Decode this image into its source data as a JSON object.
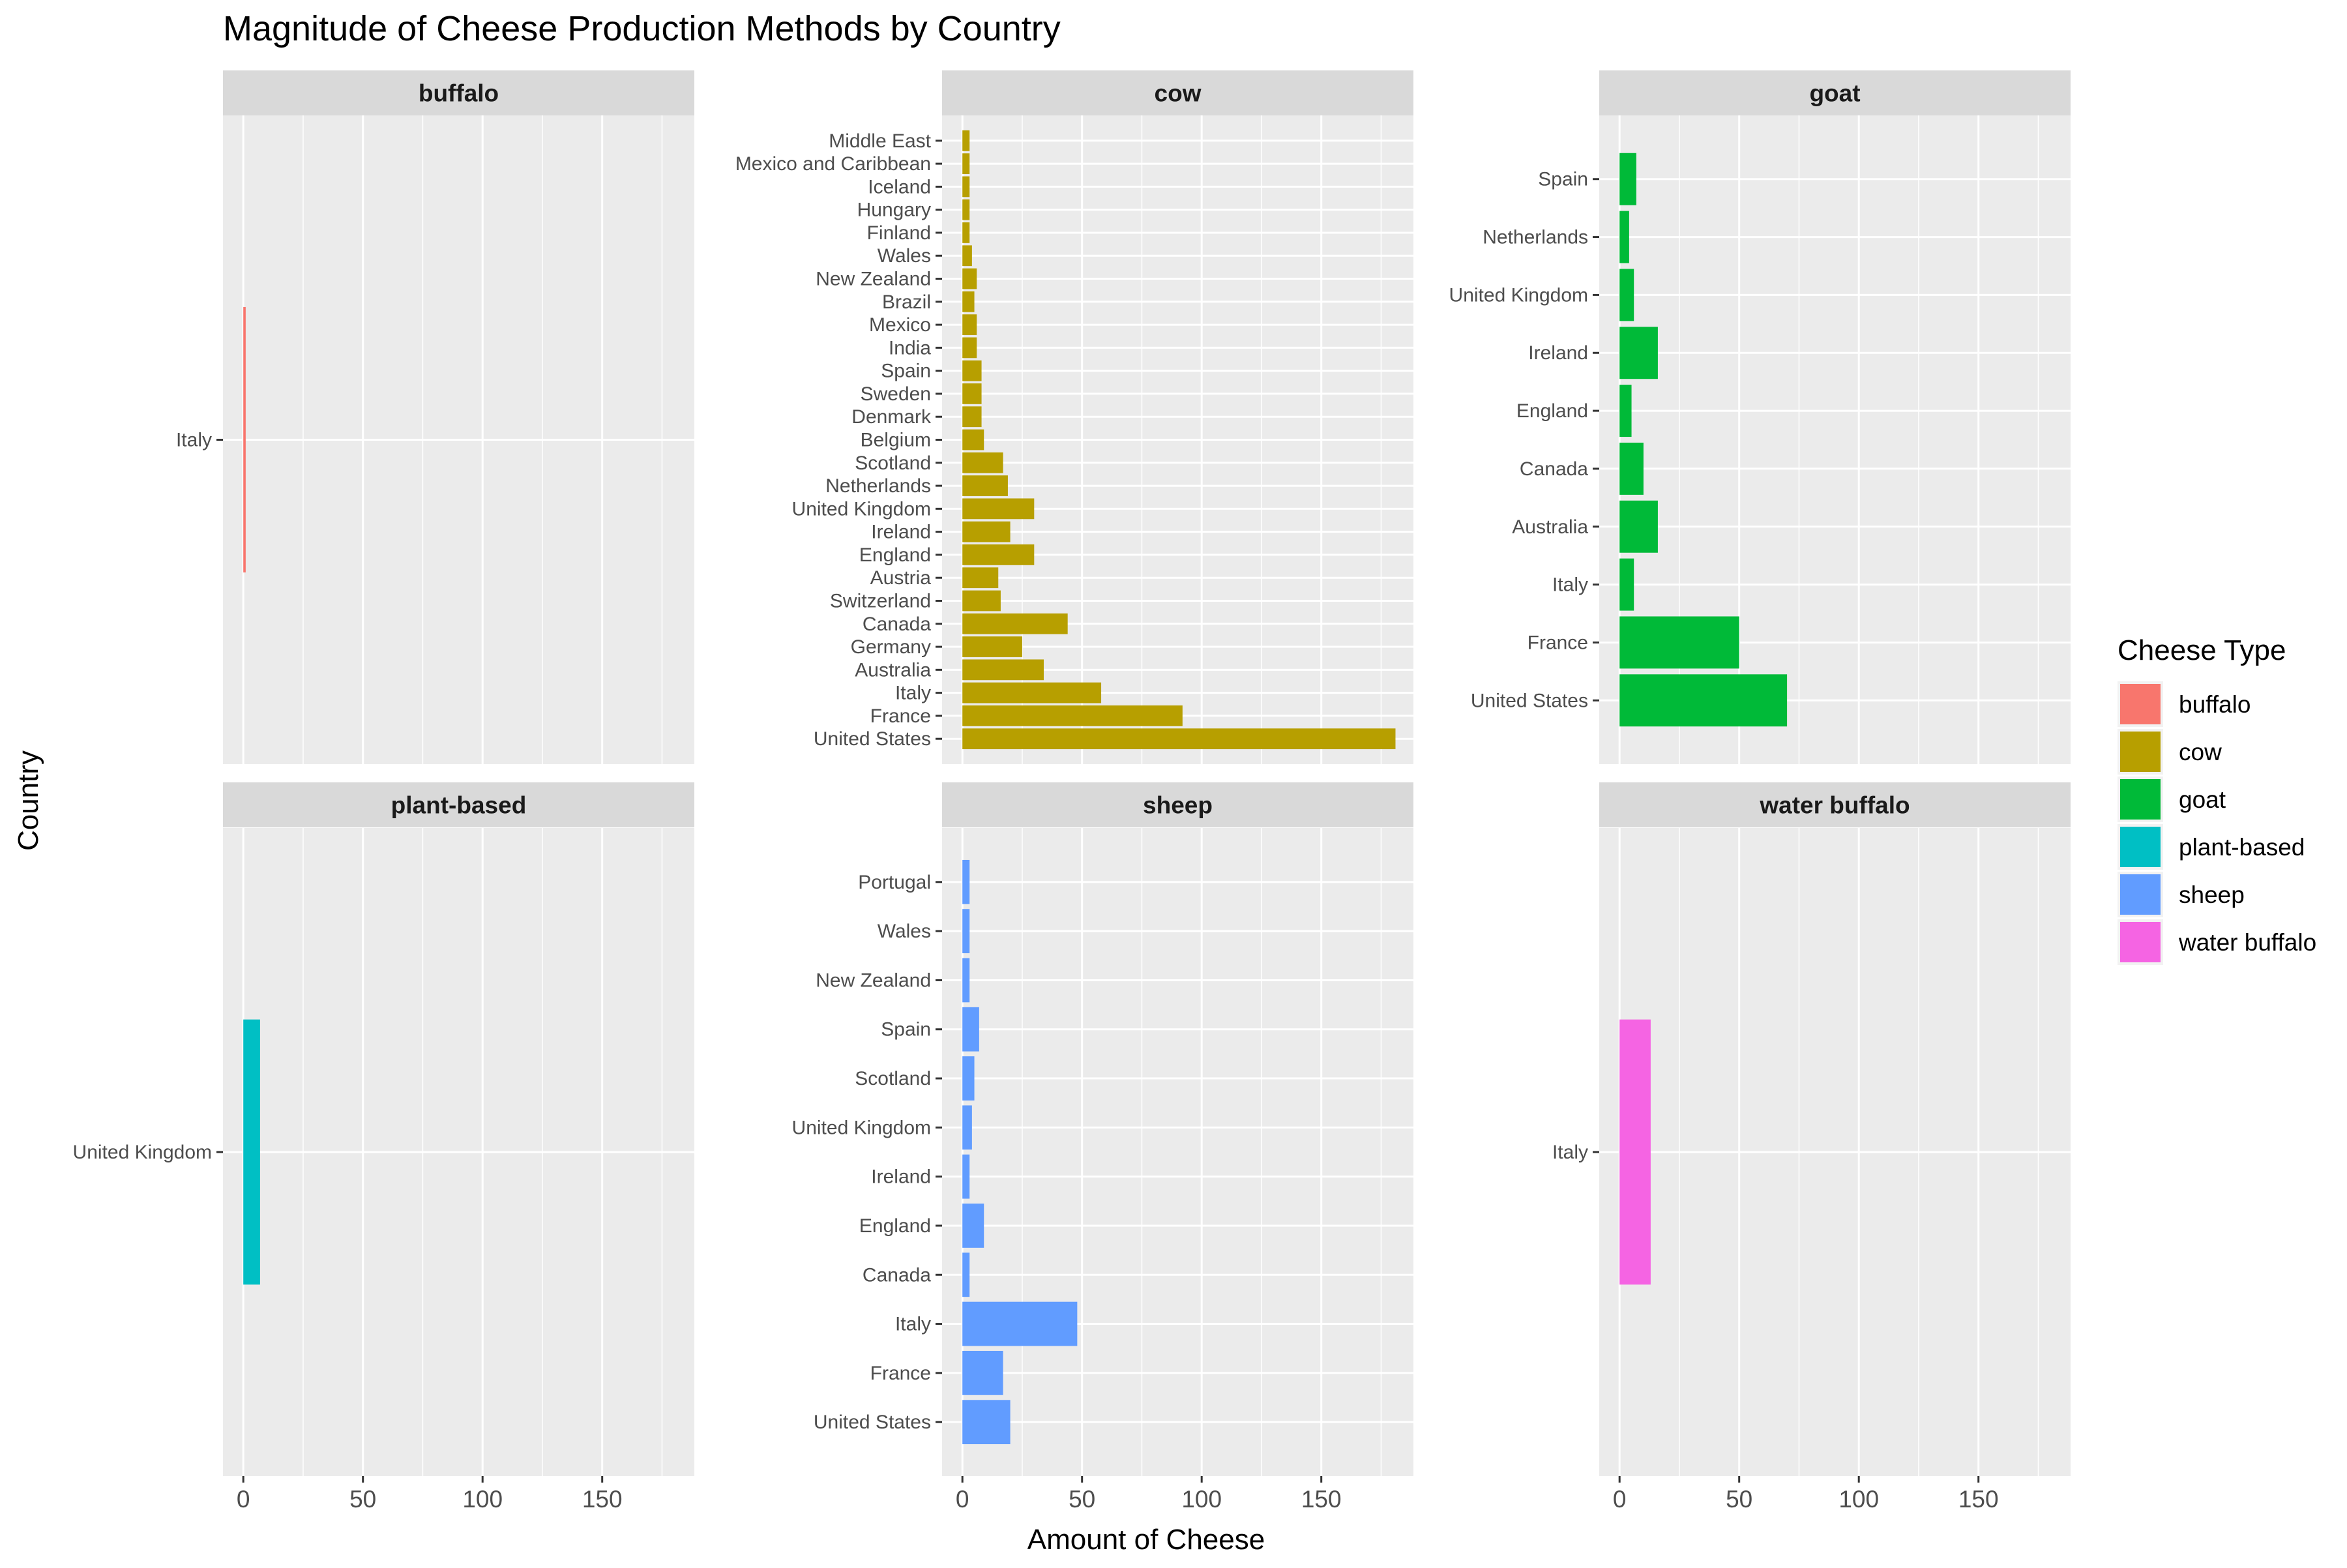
{
  "chart_data": {
    "type": "bar",
    "orientation": "horizontal",
    "facet_by": "milk",
    "title": "Magnitude of Cheese Production Methods by Country",
    "xlabel": "Amount of Cheese",
    "ylabel": "Country",
    "xlim": [
      0,
      180
    ],
    "x_ticks": [
      0,
      50,
      100,
      150
    ],
    "grid": true,
    "legend": {
      "title": "Cheese Type",
      "position": "right",
      "entries": [
        {
          "label": "buffalo",
          "color": "#F8766D"
        },
        {
          "label": "cow",
          "color": "#B79F00"
        },
        {
          "label": "goat",
          "color": "#00BA38"
        },
        {
          "label": "plant-based",
          "color": "#00BFC4"
        },
        {
          "label": "sheep",
          "color": "#619CFF"
        },
        {
          "label": "water buffalo",
          "color": "#F564E3"
        }
      ]
    },
    "facets": [
      {
        "name": "buffalo",
        "color": "#F8766D",
        "bars": [
          {
            "country": "Italy",
            "value": 1
          }
        ]
      },
      {
        "name": "cow",
        "color": "#B79F00",
        "bars": [
          {
            "country": "United States",
            "value": 181
          },
          {
            "country": "France",
            "value": 92
          },
          {
            "country": "Italy",
            "value": 58
          },
          {
            "country": "Australia",
            "value": 34
          },
          {
            "country": "Germany",
            "value": 25
          },
          {
            "country": "Canada",
            "value": 44
          },
          {
            "country": "Switzerland",
            "value": 16
          },
          {
            "country": "Austria",
            "value": 15
          },
          {
            "country": "England",
            "value": 30
          },
          {
            "country": "Ireland",
            "value": 20
          },
          {
            "country": "United Kingdom",
            "value": 30
          },
          {
            "country": "Netherlands",
            "value": 19
          },
          {
            "country": "Scotland",
            "value": 17
          },
          {
            "country": "Belgium",
            "value": 9
          },
          {
            "country": "Denmark",
            "value": 8
          },
          {
            "country": "Sweden",
            "value": 8
          },
          {
            "country": "Spain",
            "value": 8
          },
          {
            "country": "India",
            "value": 6
          },
          {
            "country": "Mexico",
            "value": 6
          },
          {
            "country": "Brazil",
            "value": 5
          },
          {
            "country": "New Zealand",
            "value": 6
          },
          {
            "country": "Wales",
            "value": 4
          },
          {
            "country": "Finland",
            "value": 3
          },
          {
            "country": "Hungary",
            "value": 3
          },
          {
            "country": "Iceland",
            "value": 3
          },
          {
            "country": "Mexico and Caribbean",
            "value": 3
          },
          {
            "country": "Middle East",
            "value": 3
          }
        ]
      },
      {
        "name": "goat",
        "color": "#00BA38",
        "bars": [
          {
            "country": "United States",
            "value": 70
          },
          {
            "country": "France",
            "value": 50
          },
          {
            "country": "Italy",
            "value": 6
          },
          {
            "country": "Australia",
            "value": 16
          },
          {
            "country": "Canada",
            "value": 10
          },
          {
            "country": "England",
            "value": 5
          },
          {
            "country": "Ireland",
            "value": 16
          },
          {
            "country": "United Kingdom",
            "value": 6
          },
          {
            "country": "Netherlands",
            "value": 4
          },
          {
            "country": "Spain",
            "value": 7
          }
        ]
      },
      {
        "name": "plant-based",
        "color": "#00BFC4",
        "bars": [
          {
            "country": "United Kingdom",
            "value": 7
          }
        ]
      },
      {
        "name": "sheep",
        "color": "#619CFF",
        "bars": [
          {
            "country": "United States",
            "value": 20
          },
          {
            "country": "France",
            "value": 17
          },
          {
            "country": "Italy",
            "value": 48
          },
          {
            "country": "Canada",
            "value": 3
          },
          {
            "country": "England",
            "value": 9
          },
          {
            "country": "Ireland",
            "value": 3
          },
          {
            "country": "United Kingdom",
            "value": 4
          },
          {
            "country": "Scotland",
            "value": 5
          },
          {
            "country": "Spain",
            "value": 7
          },
          {
            "country": "New Zealand",
            "value": 3
          },
          {
            "country": "Wales",
            "value": 3
          },
          {
            "country": "Portugal",
            "value": 3
          }
        ]
      },
      {
        "name": "water buffalo",
        "color": "#F564E3",
        "bars": [
          {
            "country": "Italy",
            "value": 13
          }
        ]
      }
    ]
  }
}
